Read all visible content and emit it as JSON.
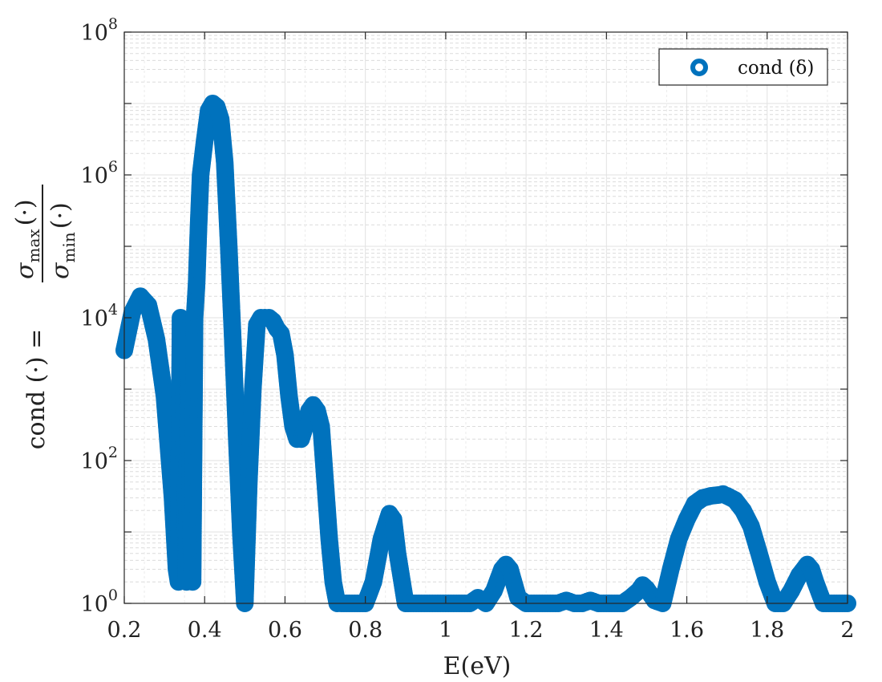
{
  "chart_data": {
    "type": "scatter",
    "title": "",
    "xlabel": "E(eV)",
    "ylabel_text": "cond (·) =",
    "ylabel_fraction": {
      "numerator": "σ",
      "numerator_sub": "max",
      "numerator_arg": "(·)",
      "denominator": "σ",
      "denominator_sub": "min",
      "denominator_arg": "(·)"
    },
    "xlim": [
      0.2,
      2.0
    ],
    "ylim": [
      1,
      100000000
    ],
    "yscale": "log",
    "grid": "major and minor",
    "legend_position": "top-right",
    "x_ticks": [
      "0.2",
      "0.4",
      "0.6",
      "0.8",
      "1",
      "1.2",
      "1.4",
      "1.6",
      "1.8",
      "2"
    ],
    "y_ticks": [
      {
        "base": "10",
        "exp": "0"
      },
      {
        "base": "10",
        "exp": "2"
      },
      {
        "base": "10",
        "exp": "4"
      },
      {
        "base": "10",
        "exp": "6"
      },
      {
        "base": "10",
        "exp": "8"
      }
    ],
    "series": [
      {
        "name": "cond (δ)",
        "color": "#0072BD",
        "marker": "circle-open",
        "x": [
          0.2,
          0.22,
          0.24,
          0.26,
          0.28,
          0.3,
          0.32,
          0.33,
          0.335,
          0.34,
          0.345,
          0.35,
          0.355,
          0.36,
          0.365,
          0.37,
          0.375,
          0.38,
          0.385,
          0.39,
          0.4,
          0.41,
          0.42,
          0.43,
          0.44,
          0.45,
          0.46,
          0.47,
          0.48,
          0.49,
          0.5,
          0.51,
          0.52,
          0.53,
          0.54,
          0.55,
          0.56,
          0.57,
          0.58,
          0.59,
          0.6,
          0.61,
          0.62,
          0.63,
          0.64,
          0.65,
          0.66,
          0.67,
          0.68,
          0.69,
          0.7,
          0.71,
          0.72,
          0.73,
          0.74,
          0.76,
          0.78,
          0.8,
          0.82,
          0.84,
          0.86,
          0.87,
          0.88,
          0.9,
          0.92,
          0.94,
          0.96,
          0.98,
          1.0,
          1.02,
          1.04,
          1.06,
          1.08,
          1.1,
          1.12,
          1.14,
          1.15,
          1.16,
          1.18,
          1.2,
          1.22,
          1.24,
          1.26,
          1.28,
          1.3,
          1.32,
          1.34,
          1.36,
          1.38,
          1.4,
          1.42,
          1.44,
          1.46,
          1.48,
          1.49,
          1.5,
          1.52,
          1.54,
          1.56,
          1.58,
          1.6,
          1.62,
          1.64,
          1.66,
          1.68,
          1.69,
          1.7,
          1.72,
          1.74,
          1.76,
          1.78,
          1.8,
          1.82,
          1.84,
          1.86,
          1.88,
          1.9,
          1.91,
          1.92,
          1.94,
          1.96,
          1.98,
          2.0
        ],
        "y": [
          3500,
          12000,
          20000,
          15000,
          5000,
          800,
          30,
          3,
          2,
          10000,
          3000,
          300,
          2,
          8000,
          20,
          2,
          10000,
          30000,
          200000,
          1000000,
          3000000,
          8000000,
          10000000,
          9000000,
          6000000,
          1500000,
          100000,
          5000,
          200,
          10,
          1,
          50,
          1000,
          8000,
          10000,
          10000,
          10000,
          9000,
          7000,
          6000,
          3000,
          800,
          300,
          200,
          200,
          300,
          500,
          600,
          500,
          300,
          50,
          8,
          2,
          1,
          1,
          1,
          1,
          1,
          2,
          8,
          18,
          15,
          5,
          1,
          1,
          1,
          1,
          1,
          1,
          1,
          1,
          1,
          1.2,
          1,
          1.5,
          3,
          3.5,
          3,
          1.2,
          1,
          1,
          1,
          1,
          1,
          1.1,
          1,
          1,
          1.1,
          1,
          1,
          1,
          1,
          1.2,
          1.5,
          1.8,
          1.6,
          1.1,
          1,
          3,
          8,
          15,
          25,
          30,
          32,
          33,
          34,
          32,
          28,
          20,
          12,
          5,
          2,
          1,
          1,
          1.5,
          2.5,
          3.5,
          3,
          2,
          1,
          1,
          1,
          1
        ]
      }
    ]
  }
}
